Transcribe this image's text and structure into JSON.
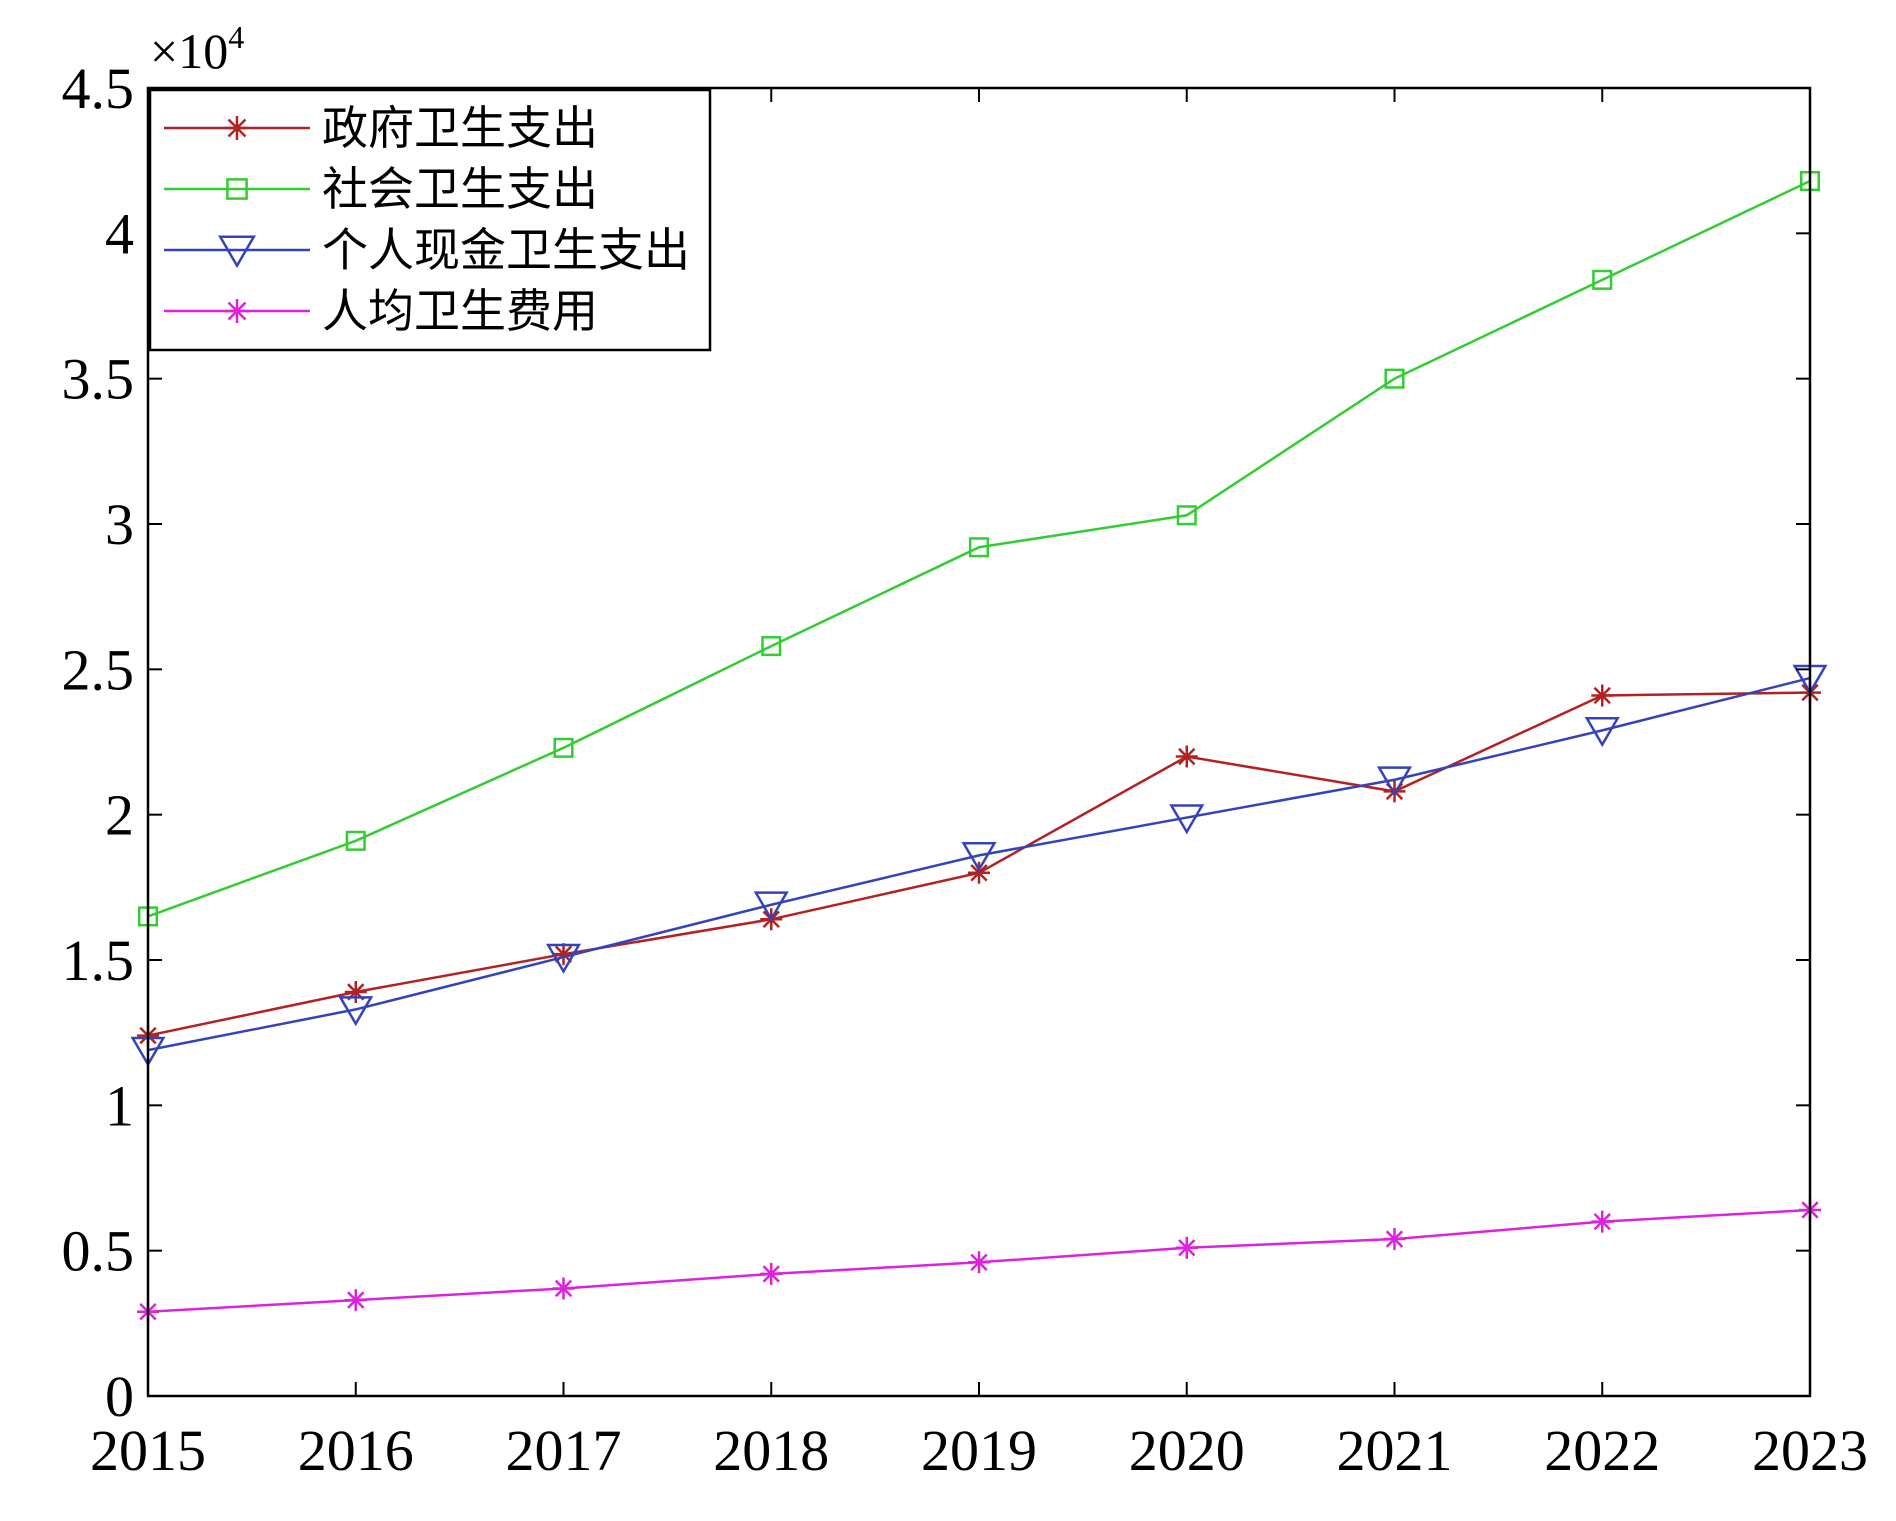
{
  "chart_data": {
    "type": "line",
    "y_multiplier_label": "×10",
    "y_multiplier_exponent": "4",
    "x": [
      "2015",
      "2016",
      "2017",
      "2018",
      "2019",
      "2020",
      "2021",
      "2022",
      "2023"
    ],
    "xlim": [
      2015,
      2023
    ],
    "ylim": [
      0,
      45000
    ],
    "y_ticks": [
      0,
      5000,
      10000,
      15000,
      20000,
      25000,
      30000,
      35000,
      40000,
      45000
    ],
    "y_tick_labels": [
      "0",
      "0.5",
      "1",
      "1.5",
      "2",
      "2.5",
      "3",
      "3.5",
      "4",
      "4.5"
    ],
    "grid": false,
    "legend_position": "top-left",
    "series": [
      {
        "name": "政府卫生支出",
        "color": "#b22222",
        "marker": "asterisk",
        "values": [
          12400,
          13900,
          15200,
          16400,
          18000,
          22000,
          20800,
          24100,
          24200
        ]
      },
      {
        "name": "社会卫生支出",
        "color": "#33cc33",
        "marker": "square",
        "values": [
          16500,
          19100,
          22300,
          25800,
          29200,
          30300,
          35000,
          38400,
          41800
        ]
      },
      {
        "name": "个人现金卫生支出",
        "color": "#3344bb",
        "marker": "triangle-down",
        "values": [
          11900,
          13300,
          15100,
          16900,
          18600,
          19900,
          21200,
          22900,
          24700
        ]
      },
      {
        "name": "人均卫生费用",
        "color": "#dd22dd",
        "marker": "asterisk",
        "values": [
          2900,
          3300,
          3700,
          4200,
          4600,
          5100,
          5400,
          6000,
          6400
        ]
      }
    ]
  }
}
